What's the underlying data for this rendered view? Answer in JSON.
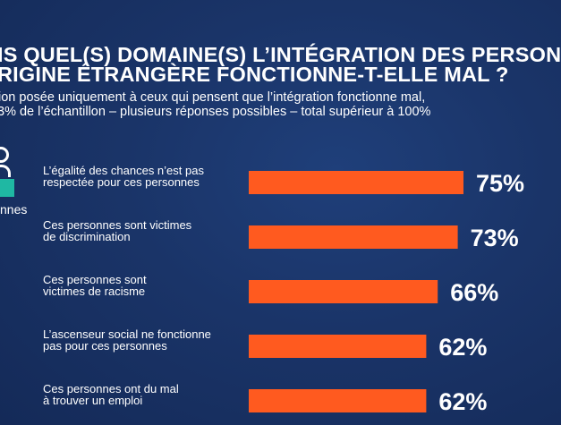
{
  "header": {
    "title_line1": "IS QUEL(S) DOMAINE(S) L’INTÉGRATION DES PERSON",
    "title_line2": "RIGINE ÉTRANGÈRE FONCTIONNE-T-ELLE MAL ?",
    "subtitle_line1": "ion posée uniquement à ceux qui pensent que l’intégration fonctionne mal,",
    "subtitle_line2": "3% de l’échantillon – plusieurs réponses possibles – total supérieur à 100%"
  },
  "sidebar": {
    "icon": "person-icon",
    "label": "nnes"
  },
  "colors": {
    "bar": "#ff5a1f",
    "accent": "#1fb8a3"
  },
  "chart_data": {
    "type": "bar",
    "orientation": "horizontal",
    "categories": [
      [
        "L’égalité des chances n’est pas",
        "respectée pour ces personnes"
      ],
      [
        "Ces personnes sont victimes",
        "de discrimination"
      ],
      [
        "Ces personnes sont",
        "victimes de racisme"
      ],
      [
        "L’ascenseur social ne fonctionne",
        "pas pour ces personnes"
      ],
      [
        "Ces personnes ont du mal",
        "à trouver un emploi"
      ]
    ],
    "values": [
      75,
      73,
      66,
      62,
      62
    ],
    "value_labels": [
      "75%",
      "73%",
      "66%",
      "62%",
      "62%"
    ],
    "xlim": [
      0,
      100
    ]
  }
}
